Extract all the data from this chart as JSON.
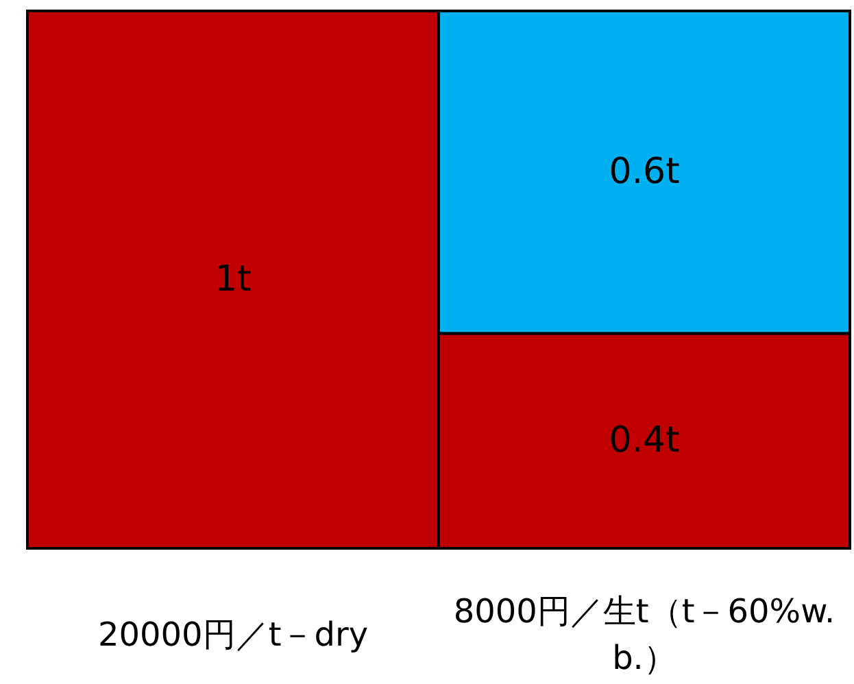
{
  "chart_data": {
    "type": "bar",
    "stacked": true,
    "categories": [
      "20000円／t－dry",
      "8000円／生t（t－60%w.b.）"
    ],
    "series": [
      {
        "color": "#c00000",
        "values": [
          1,
          0.4
        ],
        "value_labels": [
          "1t",
          "0.4t"
        ]
      },
      {
        "color": "#00b0f0",
        "values": [
          null,
          0.6
        ],
        "value_labels": [
          null,
          "0.6t"
        ]
      }
    ]
  }
}
